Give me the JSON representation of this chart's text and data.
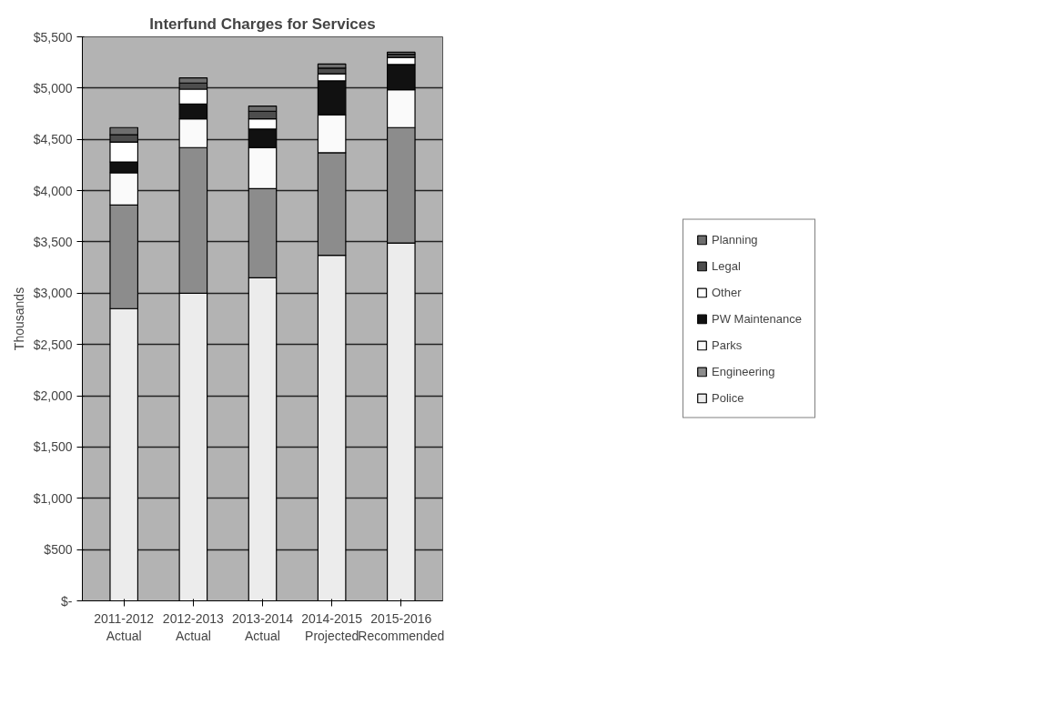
{
  "chart_data": {
    "type": "bar",
    "stacked": true,
    "title": "Interfund Charges for Services",
    "ylabel": "Thousands",
    "categories": [
      "2011-2012\nActual",
      "2012-2013\nActual",
      "2013-2014\nActual",
      "2014-2015\nProjected",
      "2015-2016\nRecommended"
    ],
    "series": [
      {
        "name": "Police",
        "color": "#ececec",
        "values": [
          2850,
          3000,
          3150,
          3370,
          3490
        ]
      },
      {
        "name": "Engineering",
        "color": "#8c8c8c",
        "values": [
          1010,
          1420,
          870,
          1000,
          1125
        ]
      },
      {
        "name": "Parks",
        "color": "#fafafa",
        "values": [
          315,
          280,
          400,
          370,
          370
        ]
      },
      {
        "name": "PW Maintenance",
        "color": "#111111",
        "values": [
          105,
          145,
          180,
          330,
          245
        ]
      },
      {
        "name": "Other",
        "color": "#ffffff",
        "values": [
          195,
          145,
          100,
          70,
          70
        ]
      },
      {
        "name": "Legal",
        "color": "#4d4d4d",
        "values": [
          70,
          60,
          75,
          55,
          30
        ]
      },
      {
        "name": "Planning",
        "color": "#6e6e6e",
        "values": [
          70,
          50,
          50,
          40,
          20
        ]
      }
    ],
    "ylim": [
      0,
      5500
    ],
    "yticks": [
      {
        "value": 0,
        "label": "$-"
      },
      {
        "value": 500,
        "label": "$500"
      },
      {
        "value": 1000,
        "label": "$1,000"
      },
      {
        "value": 1500,
        "label": "$1,500"
      },
      {
        "value": 2000,
        "label": "$2,000"
      },
      {
        "value": 2500,
        "label": "$2,500"
      },
      {
        "value": 3000,
        "label": "$3,000"
      },
      {
        "value": 3500,
        "label": "$3,500"
      },
      {
        "value": 4000,
        "label": "$4,000"
      },
      {
        "value": 4500,
        "label": "$4,500"
      },
      {
        "value": 5000,
        "label": "$5,000"
      },
      {
        "value": 5500,
        "label": "$5,500"
      }
    ],
    "grid": "y",
    "legend": "right"
  }
}
